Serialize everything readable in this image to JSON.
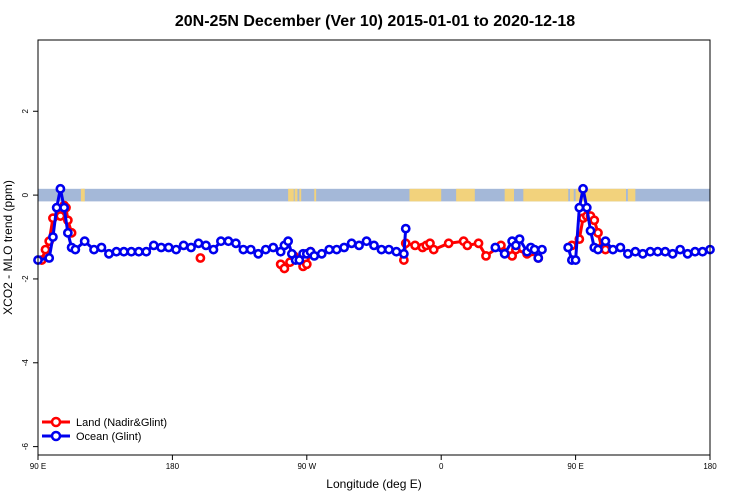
{
  "chart_data": {
    "type": "line",
    "title": "20N-25N December (Ver 10)   2015-01-01 to 2020-12-18",
    "xlabel": "Longitude (deg E)",
    "ylabel": "XCO2 - MLO trend (ppm)",
    "xlim": [
      90,
      450
    ],
    "ylim": [
      -6.2,
      3.7
    ],
    "x_tick_values": [
      90,
      162,
      234,
      306,
      378,
      450
    ],
    "x_tick_labels": [
      "90 E",
      "180",
      "90 W",
      "0",
      "90 E",
      "180"
    ],
    "y_tick_values": [
      -6,
      -4,
      -2,
      0,
      2
    ],
    "y_tick_labels": [
      "-6",
      "-4",
      "-2",
      "0",
      "2"
    ],
    "legend_position": "bottom-left",
    "map_band": {
      "y_range": [
        -0.15,
        0.15
      ],
      "ocean_color": "#a4b8d8",
      "land_color": "#f2d27c",
      "land_segments": [
        [
          113,
          115
        ],
        [
          114,
          115
        ],
        [
          224,
          227
        ],
        [
          227.5,
          229
        ],
        [
          230,
          231
        ],
        [
          238,
          239
        ],
        [
          289,
          306
        ],
        [
          314,
          324
        ],
        [
          340,
          345
        ],
        [
          350,
          374
        ],
        [
          373,
          374
        ],
        [
          375,
          377
        ],
        [
          378,
          405
        ],
        [
          406,
          410
        ]
      ]
    },
    "series": [
      {
        "name": "Land (Nadir&Glint)",
        "color": "#ff0000",
        "x": [
          92,
          94,
          96,
          98,
          102,
          104,
          105,
          106,
          108,
          177,
          220,
          222,
          225,
          227,
          232,
          234,
          236,
          286,
          287,
          292,
          296,
          298,
          300,
          302,
          310,
          318,
          320,
          326,
          330,
          338,
          344,
          346,
          352,
          354,
          358,
          376,
          380,
          382,
          384,
          386,
          388,
          390,
          392,
          394
        ],
        "y": [
          -1.55,
          -1.3,
          -1.1,
          -0.55,
          -0.5,
          -0.25,
          -0.3,
          -0.6,
          -0.9,
          -1.5,
          -1.65,
          -1.75,
          -1.6,
          -1.45,
          -1.7,
          -1.65,
          -1.35,
          -1.55,
          -1.15,
          -1.2,
          -1.25,
          -1.2,
          -1.15,
          -1.3,
          -1.15,
          -1.1,
          -1.2,
          -1.15,
          -1.45,
          -1.2,
          -1.45,
          -1.3,
          -1.4,
          -1.35,
          -1.5,
          -1.2,
          -1.05,
          -0.55,
          -0.5,
          -0.5,
          -0.6,
          -0.9,
          -1.25,
          -1.3
        ]
      },
      {
        "name": "Ocean (Glint)",
        "color": "#0000ee",
        "x": [
          90,
          96,
          98,
          100,
          102,
          104,
          106,
          108,
          110,
          115,
          120,
          124,
          128,
          132,
          136,
          140,
          144,
          148,
          152,
          156,
          160,
          164,
          168,
          172,
          176,
          180,
          184,
          188,
          192,
          196,
          200,
          204,
          208,
          212,
          216,
          220,
          222,
          224,
          226,
          228,
          230,
          232,
          234,
          236,
          238,
          242,
          246,
          250,
          254,
          258,
          262,
          266,
          270,
          274,
          278,
          282,
          286,
          287,
          335,
          340,
          344,
          346,
          348,
          352,
          354,
          356,
          358,
          360,
          374,
          376,
          378,
          380,
          382,
          384,
          386,
          388,
          390,
          394,
          398,
          402,
          406,
          410,
          414,
          418,
          422,
          426,
          430,
          434,
          438,
          442,
          446,
          450
        ],
        "y": [
          -1.55,
          -1.5,
          -1.0,
          -0.3,
          0.15,
          -0.3,
          -0.9,
          -1.25,
          -1.3,
          -1.1,
          -1.3,
          -1.25,
          -1.4,
          -1.35,
          -1.35,
          -1.35,
          -1.35,
          -1.35,
          -1.2,
          -1.25,
          -1.25,
          -1.3,
          -1.2,
          -1.25,
          -1.15,
          -1.2,
          -1.3,
          -1.1,
          -1.1,
          -1.15,
          -1.3,
          -1.3,
          -1.4,
          -1.3,
          -1.25,
          -1.35,
          -1.2,
          -1.1,
          -1.4,
          -1.55,
          -1.55,
          -1.4,
          -1.4,
          -1.35,
          -1.45,
          -1.4,
          -1.3,
          -1.3,
          -1.25,
          -1.15,
          -1.2,
          -1.1,
          -1.2,
          -1.3,
          -1.3,
          -1.35,
          -1.4,
          -0.8,
          -1.25,
          -1.4,
          -1.1,
          -1.2,
          -1.05,
          -1.35,
          -1.25,
          -1.3,
          -1.5,
          -1.3,
          -1.25,
          -1.55,
          -1.55,
          -0.3,
          0.15,
          -0.3,
          -0.85,
          -1.25,
          -1.3,
          -1.1,
          -1.3,
          -1.25,
          -1.4,
          -1.35,
          -1.4,
          -1.35,
          -1.35,
          -1.35,
          -1.4,
          -1.3,
          -1.4,
          -1.35,
          -1.35,
          -1.3
        ]
      }
    ]
  }
}
